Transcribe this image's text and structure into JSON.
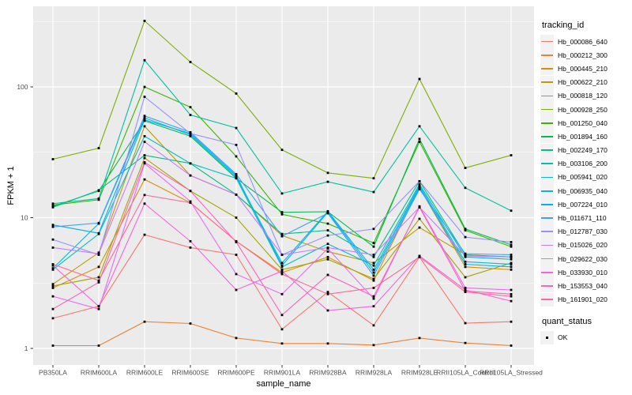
{
  "figure": {
    "ylabel": "FPKM + 1",
    "xlabel": "sample_name"
  },
  "legend": {
    "tracking_title": "tracking_id",
    "quant_title": "quant_status",
    "quant_items": [
      {
        "label": "OK",
        "marker": "black-square"
      }
    ]
  },
  "colors": {
    "panel_bg": "#EBEBEB",
    "grid": "#FFFFFF",
    "tick_mark": "#333333",
    "tick_label": "#4D4D4D",
    "key_bg": "#F2F2F2",
    "point": "#000000"
  },
  "chart_data": {
    "type": "line",
    "title": "",
    "xlabel": "sample_name",
    "ylabel": "FPKM + 1",
    "y_scale": "log10",
    "ylim": [
      0.75,
      415
    ],
    "yticks": [
      1,
      10,
      100
    ],
    "ytick_labels": [
      "1",
      "10",
      "100"
    ],
    "grid": true,
    "legend_position": "right",
    "point_shape": "square",
    "point_color": "#000000",
    "categories": [
      "PB350LA",
      "RRIM600LA",
      "RRIM600LE",
      "RRIM600SE",
      "RRIM600PE",
      "RRIM901LA",
      "RRIM928BA",
      "RRIM928LA",
      "RRIM928LE",
      "RRII105LA_Control",
      "RRII105LA_Stressed"
    ],
    "series": [
      {
        "name": "Hb_000086_640",
        "color": "#F8766D",
        "values": [
          1.7,
          2.1,
          7.4,
          5.9,
          5.2,
          1.4,
          2.7,
          1.5,
          5.0,
          1.56,
          1.6
        ]
      },
      {
        "name": "Hb_000212_300",
        "color": "#EA8331",
        "values": [
          1.05,
          1.05,
          1.6,
          1.55,
          1.2,
          1.09,
          1.09,
          1.06,
          1.2,
          1.1,
          1.05
        ]
      },
      {
        "name": "Hb_000445_210",
        "color": "#D89000",
        "values": [
          2.9,
          4.2,
          19.6,
          13.0,
          6.6,
          3.8,
          5.0,
          3.3,
          17.0,
          4.2,
          4.0
        ]
      },
      {
        "name": "Hb_000622_210",
        "color": "#C09B00",
        "values": [
          3.1,
          5.4,
          50.0,
          21.0,
          15.0,
          7.3,
          5.5,
          4.5,
          8.4,
          5.2,
          5.0
        ]
      },
      {
        "name": "Hb_000818_120",
        "color": "#A3A500",
        "values": [
          3.0,
          3.5,
          28.6,
          16.0,
          10.0,
          4.0,
          4.8,
          3.4,
          9.8,
          3.5,
          4.5
        ]
      },
      {
        "name": "Hb_000928_250",
        "color": "#7CAE00",
        "values": [
          28.0,
          34.0,
          320.0,
          155.0,
          89.0,
          33.0,
          22.0,
          20.0,
          115.0,
          24.0,
          30.0
        ]
      },
      {
        "name": "Hb_001250_040",
        "color": "#39B600",
        "values": [
          12.5,
          13.7,
          100.0,
          70.0,
          29.4,
          10.6,
          9.0,
          6.4,
          38.0,
          8.0,
          6.0
        ]
      },
      {
        "name": "Hb_001894_160",
        "color": "#00BB4E",
        "values": [
          12.2,
          16.0,
          55.0,
          42.0,
          20.0,
          11.0,
          11.1,
          6.0,
          40.0,
          8.2,
          6.2
        ]
      },
      {
        "name": "Hb_002249_170",
        "color": "#00C087",
        "values": [
          12.0,
          16.2,
          30.0,
          26.0,
          15.0,
          7.5,
          8.0,
          5.0,
          19.0,
          5.2,
          5.0
        ]
      },
      {
        "name": "Hb_003106_200",
        "color": "#00C1A3",
        "values": [
          12.8,
          14.0,
          160.0,
          61.0,
          48.5,
          15.3,
          18.8,
          15.7,
          50.0,
          16.9,
          11.3
        ]
      },
      {
        "name": "Hb_005941_020",
        "color": "#00BFC4",
        "values": [
          4.0,
          7.5,
          42.0,
          26.0,
          20.0,
          4.2,
          6.3,
          4.3,
          18.0,
          5.0,
          4.8
        ]
      },
      {
        "name": "Hb_006935_040",
        "color": "#00BAE0",
        "values": [
          4.1,
          9.0,
          58.0,
          43.0,
          20.5,
          4.5,
          11.2,
          4.0,
          17.5,
          4.6,
          4.4
        ]
      },
      {
        "name": "Hb_007224_010",
        "color": "#00B0F6",
        "values": [
          8.8,
          7.6,
          56.0,
          44.0,
          21.0,
          4.3,
          11.0,
          3.8,
          17.0,
          4.4,
          4.2
        ]
      },
      {
        "name": "Hb_011671_110",
        "color": "#35A2FF",
        "values": [
          8.5,
          9.1,
          60.0,
          45.0,
          21.5,
          7.2,
          10.8,
          3.6,
          16.5,
          5.3,
          5.2
        ]
      },
      {
        "name": "Hb_012787_030",
        "color": "#9590FF",
        "values": [
          6.8,
          5.2,
          84.0,
          44.0,
          36.0,
          5.2,
          7.3,
          8.2,
          19.0,
          7.1,
          6.5
        ]
      },
      {
        "name": "Hb_015026_020",
        "color": "#C77CFF",
        "values": [
          5.9,
          5.3,
          38.0,
          21.0,
          15.0,
          5.2,
          5.9,
          5.2,
          12.0,
          5.1,
          5.0
        ]
      },
      {
        "name": "Hb_029622_030",
        "color": "#E76BF3",
        "values": [
          2.5,
          2.0,
          26.0,
          13.3,
          3.7,
          2.6,
          5.8,
          2.4,
          12.2,
          2.9,
          2.8
        ]
      },
      {
        "name": "Hb_033930_010",
        "color": "#FA62DB",
        "values": [
          4.3,
          2.1,
          12.8,
          6.6,
          2.8,
          3.9,
          1.95,
          2.1,
          5.1,
          2.8,
          2.3
        ]
      },
      {
        "name": "Hb_153553_040",
        "color": "#FF62BC",
        "values": [
          2.0,
          3.2,
          26.5,
          16.0,
          6.5,
          1.8,
          3.65,
          2.5,
          12.0,
          2.75,
          2.6
        ]
      },
      {
        "name": "Hb_161901_020",
        "color": "#FF6A98",
        "values": [
          4.4,
          3.3,
          14.9,
          13.0,
          6.6,
          3.7,
          2.6,
          2.9,
          5.0,
          2.7,
          2.5
        ]
      }
    ]
  }
}
